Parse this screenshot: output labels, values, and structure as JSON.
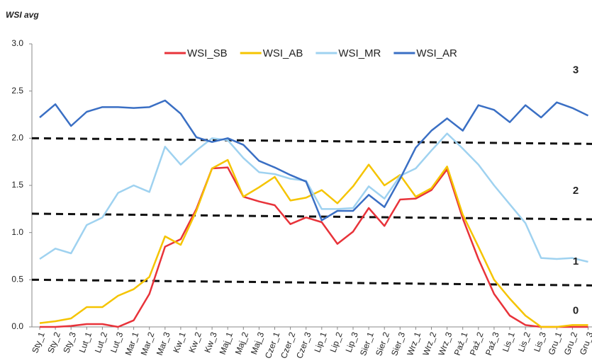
{
  "chart_data": {
    "type": "line",
    "title": "WSI avg",
    "categories": [
      "Sty_1",
      "Sty_2",
      "Sty_3",
      "Lut_1",
      "Lut_2",
      "Lut_3",
      "Mar_1",
      "Mar_2",
      "Mar_3",
      "Kw_1",
      "Kw_2",
      "Kw_3",
      "Maj_1",
      "Maj_2",
      "Maj_3",
      "Czer_1",
      "Czer_2",
      "Czer_3",
      "Lip_1",
      "Lip_2",
      "Lip_3",
      "Sier_1",
      "Sier_2",
      "Sier_3",
      "Wrz_1",
      "Wrz_2",
      "Wrz_3",
      "Paź_1",
      "Paź_2",
      "Paź_3",
      "Lis_1",
      "Lis_2",
      "Lis_3",
      "Gru_1",
      "Gru_2",
      "Gru_3"
    ],
    "series": [
      {
        "name": "WSI_SB",
        "color": "#e8333a",
        "values": [
          0.0,
          0.0,
          0.01,
          0.03,
          0.03,
          0.0,
          0.07,
          0.35,
          0.85,
          0.93,
          1.25,
          1.68,
          1.69,
          1.38,
          1.33,
          1.29,
          1.09,
          1.16,
          1.11,
          0.88,
          1.01,
          1.26,
          1.07,
          1.35,
          1.36,
          1.45,
          1.67,
          1.15,
          0.72,
          0.35,
          0.12,
          0.02,
          0.0,
          0.0,
          0.0,
          0.0
        ]
      },
      {
        "name": "WSI_AB",
        "color": "#f5c400",
        "values": [
          0.04,
          0.06,
          0.09,
          0.21,
          0.21,
          0.33,
          0.4,
          0.53,
          0.96,
          0.87,
          1.23,
          1.68,
          1.77,
          1.38,
          1.48,
          1.59,
          1.34,
          1.37,
          1.45,
          1.31,
          1.49,
          1.72,
          1.5,
          1.61,
          1.38,
          1.47,
          1.7,
          1.19,
          0.85,
          0.5,
          0.3,
          0.12,
          0.0,
          0.0,
          0.02,
          0.02
        ]
      },
      {
        "name": "WSI_MR",
        "color": "#9fd2f0",
        "values": [
          0.72,
          0.83,
          0.78,
          1.08,
          1.16,
          1.42,
          1.5,
          1.43,
          1.91,
          1.72,
          1.87,
          2.0,
          1.98,
          1.79,
          1.64,
          1.62,
          1.57,
          1.55,
          1.25,
          1.25,
          1.26,
          1.49,
          1.36,
          1.6,
          1.68,
          1.87,
          2.05,
          1.89,
          1.72,
          1.5,
          1.3,
          1.1,
          0.73,
          0.72,
          0.73,
          0.69
        ]
      },
      {
        "name": "WSI_AR",
        "color": "#3a6fc4",
        "values": [
          2.22,
          2.36,
          2.13,
          2.28,
          2.33,
          2.33,
          2.32,
          2.33,
          2.4,
          2.26,
          2.01,
          1.96,
          2.0,
          1.93,
          1.76,
          1.69,
          1.61,
          1.54,
          1.13,
          1.23,
          1.23,
          1.4,
          1.27,
          1.57,
          1.9,
          2.08,
          2.21,
          2.08,
          2.35,
          2.3,
          2.17,
          2.35,
          2.22,
          2.38,
          2.32,
          2.24
        ]
      }
    ],
    "ylim": [
      0,
      3
    ],
    "yticks": [
      {
        "value": 0,
        "label": "0.0"
      },
      0.5,
      {
        "value": 1,
        "label": "1.0"
      },
      1.5,
      {
        "value": 2,
        "label": "2.0"
      },
      2.5,
      {
        "value": 3,
        "label": "3.0"
      }
    ],
    "reference_lines": [
      {
        "start": 2.0,
        "end": 1.94
      },
      {
        "start": 1.2,
        "end": 1.14
      },
      {
        "start": 0.5,
        "end": 0.44
      }
    ],
    "zone_labels": [
      "3",
      "2",
      "1",
      "0"
    ]
  }
}
